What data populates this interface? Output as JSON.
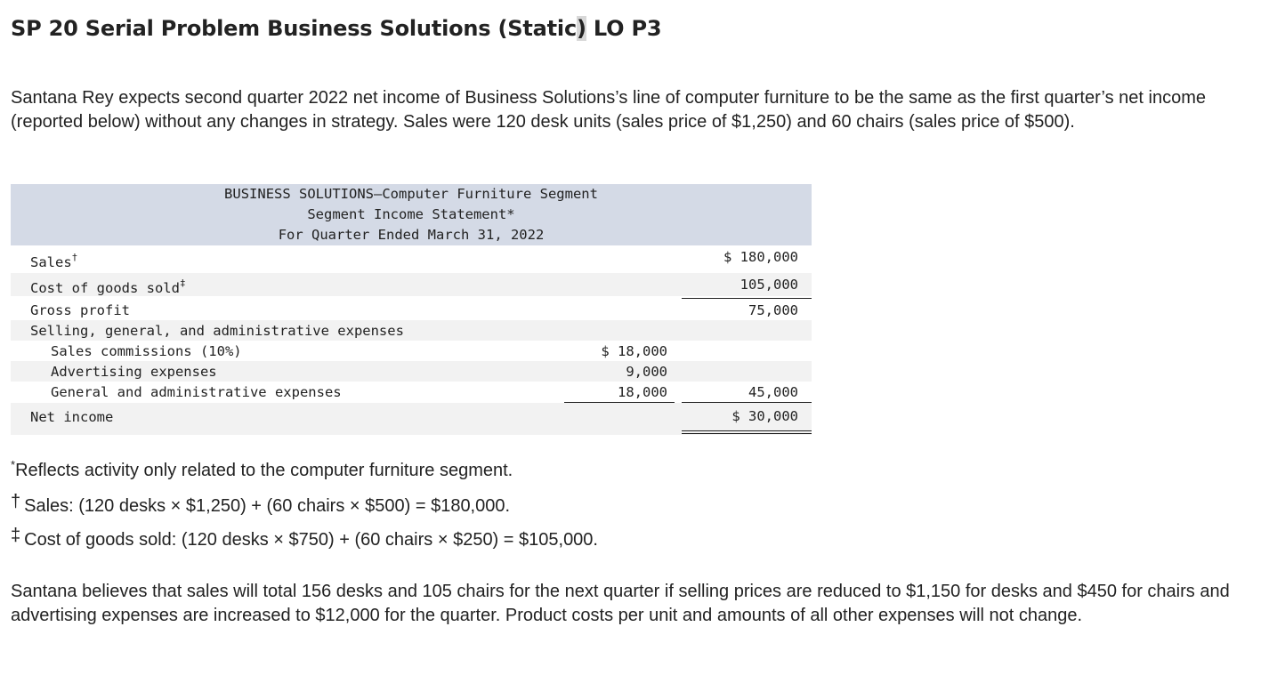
{
  "title": {
    "pre": "SP 20 Serial Problem Business Solutions (Static",
    "highlight": ")",
    "post": " LO P3"
  },
  "intro": "Santana Rey expects second quarter 2022 net income of Business Solutions’s line of computer furniture to be the same as the first quarter’s net income (reported below) without any changes in strategy. Sales were 120 desk units (sales price of $1,250) and 60 chairs (sales price of $500).",
  "statement": {
    "heading": [
      "BUSINESS SOLUTIONS—Computer Furniture Segment",
      "Segment Income Statement*",
      "For Quarter Ended March 31, 2022"
    ],
    "rows": [
      {
        "label": "Sales",
        "mark": "†",
        "col1": "",
        "col2": "$ 180,000"
      },
      {
        "label": "Cost of goods sold",
        "mark": "‡",
        "col1": "",
        "col2": "105,000"
      },
      {
        "label": "Gross profit",
        "mark": "",
        "col1": "",
        "col2": "75,000"
      },
      {
        "label": "Selling, general, and administrative expenses",
        "mark": "",
        "col1": "",
        "col2": ""
      },
      {
        "label": "Sales commissions (10%)",
        "mark": "",
        "col1": "$ 18,000",
        "col2": ""
      },
      {
        "label": "Advertising expenses",
        "mark": "",
        "col1": "9,000",
        "col2": ""
      },
      {
        "label": "General and administrative expenses",
        "mark": "",
        "col1": "18,000",
        "col2": "45,000"
      },
      {
        "label": "Net income",
        "mark": "",
        "col1": "",
        "col2": "$ 30,000"
      }
    ]
  },
  "footnotes": [
    {
      "mark": "*",
      "text": "Reflects activity only related to the computer furniture segment."
    },
    {
      "mark": "†",
      "text": "Sales: (120 desks × $1,250) + (60 chairs × $500) = $180,000."
    },
    {
      "mark": "‡",
      "text": "Cost of goods sold: (120 desks × $750) + (60 chairs × $250) = $105,000."
    }
  ],
  "closing": "Santana believes that sales will total 156 desks and 105 chairs for the next quarter if selling prices are reduced to $1,150 for desks and $450 for chairs and advertising expenses are increased to $12,000 for the quarter. Product costs per unit and amounts of all other expenses will not change."
}
